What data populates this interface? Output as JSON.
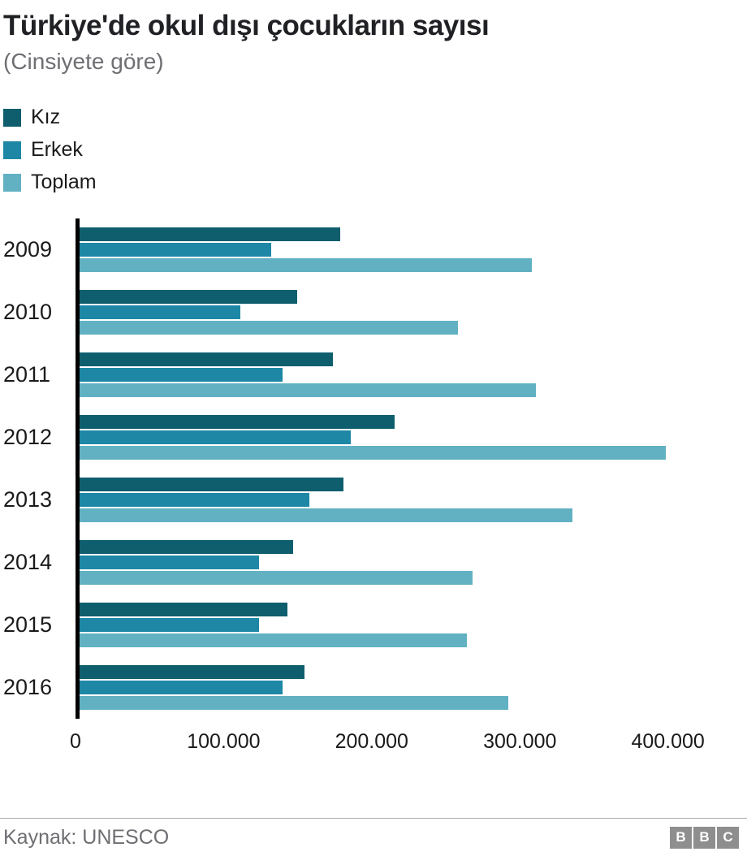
{
  "header": {
    "title": "Türkiye'de okul dışı çocukların sayısı",
    "subtitle": "(Cinsiyete göre)"
  },
  "chart_data": {
    "type": "bar",
    "orientation": "horizontal",
    "title": "Türkiye'de okul dışı çocukların sayısı",
    "subtitle": "(Cinsiyete göre)",
    "categories": [
      "2009",
      "2010",
      "2011",
      "2012",
      "2013",
      "2014",
      "2015",
      "2016"
    ],
    "series": [
      {
        "name": "Kız",
        "color": "#0f5e6e",
        "values": [
          177000,
          148000,
          172000,
          214000,
          179000,
          145000,
          141000,
          153000
        ]
      },
      {
        "name": "Erkek",
        "color": "#1d87a5",
        "values": [
          130000,
          109000,
          138000,
          184000,
          156000,
          122000,
          122000,
          138000
        ]
      },
      {
        "name": "Toplam",
        "color": "#61b1c3",
        "values": [
          307000,
          257000,
          310000,
          398000,
          335000,
          267000,
          263000,
          291000
        ]
      }
    ],
    "xticks": [
      0,
      100000,
      200000,
      300000,
      400000
    ],
    "xtick_labels": [
      "0",
      "100.000",
      "200.000",
      "300.000",
      "400.000"
    ],
    "xlim": [
      0,
      449000
    ],
    "grid": false,
    "legend_position": "top-left"
  },
  "footer": {
    "source": "Kaynak: UNESCO",
    "logo_letters": [
      "B",
      "B",
      "C"
    ]
  }
}
